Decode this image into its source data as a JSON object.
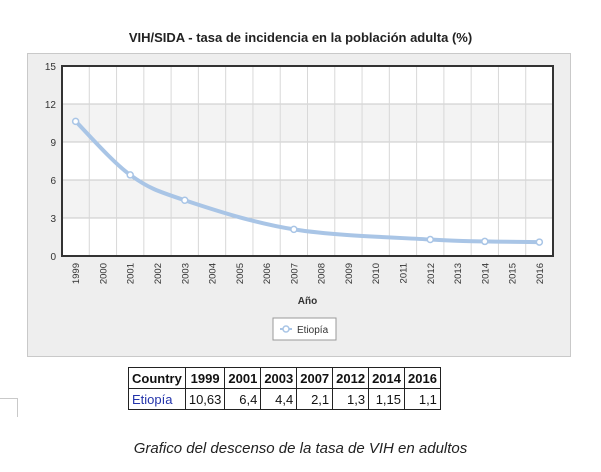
{
  "chart_data": {
    "type": "line",
    "title": "VIH/SIDA - tasa de incidencia en la población adulta (%)",
    "xlabel": "Año",
    "ylabel": "",
    "x": [
      1999,
      2000,
      2001,
      2002,
      2003,
      2004,
      2005,
      2006,
      2007,
      2008,
      2009,
      2010,
      2011,
      2012,
      2013,
      2014,
      2015,
      2016
    ],
    "xtick_labels": [
      "1999",
      "2000",
      "2001",
      "2002",
      "2003",
      "2004",
      "2005",
      "2006",
      "2007",
      "2008",
      "2009",
      "2010",
      "2011",
      "2012",
      "2013",
      "2014",
      "2015",
      "2016"
    ],
    "ylim": [
      0,
      15
    ],
    "yticks": [
      0,
      3,
      6,
      9,
      12,
      15
    ],
    "grid": true,
    "legend_position": "bottom-center",
    "series": [
      {
        "name": "Etiopía",
        "color": "#a9c5e6",
        "x": [
          1999,
          2001,
          2003,
          2007,
          2012,
          2014,
          2016
        ],
        "y": [
          10.63,
          6.4,
          4.4,
          2.1,
          1.3,
          1.15,
          1.1
        ]
      }
    ]
  },
  "table": {
    "headers": [
      "Country",
      "1999",
      "2001",
      "2003",
      "2007",
      "2012",
      "2014",
      "2016"
    ],
    "rows": [
      [
        "Etiopía",
        "10,63",
        "6,4",
        "4,4",
        "2,1",
        "1,3",
        "1,15",
        "1,1"
      ]
    ]
  },
  "caption": "Grafico del descenso de la tasa de VIH en adultos"
}
